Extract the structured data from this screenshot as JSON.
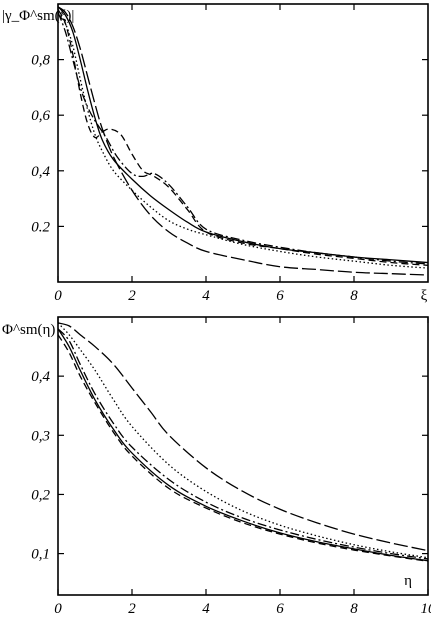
{
  "chart_data": [
    {
      "type": "line",
      "ylabel": "|γ_Φ^sm(ξ)|",
      "xlabel": "ξ",
      "xlim": [
        0,
        10
      ],
      "ylim": [
        0,
        1.0
      ],
      "x_ticks": [
        0,
        2,
        4,
        6,
        8
      ],
      "x_tick_labels": [
        "0",
        "2",
        "4",
        "6",
        "8"
      ],
      "x_axis_label_tick": "ξ",
      "y_ticks": [
        0.2,
        0.4,
        0.6,
        0.8
      ],
      "y_tick_labels": [
        "0.2",
        "0,4",
        "0,6",
        "0,8"
      ],
      "grid": false,
      "series": [
        {
          "style": "solid",
          "x": [
            0,
            0.2,
            0.4,
            0.6,
            0.8,
            1.0,
            1.2,
            1.5,
            2.0,
            2.5,
            3.0,
            3.5,
            4.0,
            5.0,
            6.0,
            7.0,
            8.0,
            9.0,
            10.0
          ],
          "y": [
            0.99,
            0.96,
            0.9,
            0.8,
            0.69,
            0.59,
            0.51,
            0.44,
            0.37,
            0.31,
            0.26,
            0.215,
            0.18,
            0.145,
            0.12,
            0.105,
            0.09,
            0.08,
            0.07
          ]
        },
        {
          "style": "dotted",
          "x": [
            0,
            0.2,
            0.4,
            0.6,
            0.8,
            1.0,
            1.2,
            1.5,
            2.0,
            2.5,
            3.0,
            3.5,
            4.0,
            5.0,
            6.0,
            7.0,
            8.0,
            9.0,
            10.0
          ],
          "y": [
            0.97,
            0.93,
            0.85,
            0.73,
            0.62,
            0.53,
            0.47,
            0.4,
            0.33,
            0.27,
            0.22,
            0.19,
            0.17,
            0.135,
            0.11,
            0.09,
            0.075,
            0.06,
            0.05
          ]
        },
        {
          "style": "dashed",
          "x": [
            0,
            0.2,
            0.4,
            0.6,
            0.8,
            1.0,
            1.2,
            1.4,
            1.7,
            2.0,
            2.3,
            2.6,
            3.0,
            3.5,
            4.0,
            5.0,
            6.0,
            7.0,
            8.0,
            9.0,
            10.0
          ],
          "y": [
            0.98,
            0.93,
            0.82,
            0.68,
            0.57,
            0.52,
            0.54,
            0.55,
            0.53,
            0.46,
            0.4,
            0.38,
            0.34,
            0.26,
            0.18,
            0.14,
            0.12,
            0.1,
            0.085,
            0.07,
            0.06
          ]
        },
        {
          "style": "dash-dot",
          "x": [
            0,
            0.2,
            0.4,
            0.6,
            0.8,
            1.0,
            1.3,
            1.6,
            2.0,
            2.3,
            2.6,
            3.0,
            3.5,
            4.0,
            5.0,
            6.0,
            7.0,
            8.0,
            9.0,
            10.0
          ],
          "y": [
            0.97,
            0.9,
            0.8,
            0.7,
            0.63,
            0.58,
            0.52,
            0.45,
            0.39,
            0.38,
            0.39,
            0.35,
            0.27,
            0.19,
            0.15,
            0.125,
            0.105,
            0.09,
            0.075,
            0.065
          ]
        },
        {
          "style": "long-dash",
          "x": [
            0,
            0.2,
            0.4,
            0.6,
            0.8,
            1.0,
            1.2,
            1.5,
            2.0,
            2.5,
            3.0,
            3.5,
            4.0,
            5.0,
            6.0,
            7.0,
            8.0,
            9.0,
            10.0
          ],
          "y": [
            0.99,
            0.97,
            0.92,
            0.84,
            0.74,
            0.64,
            0.55,
            0.45,
            0.33,
            0.24,
            0.18,
            0.14,
            0.11,
            0.08,
            0.055,
            0.045,
            0.035,
            0.03,
            0.025
          ]
        }
      ]
    },
    {
      "type": "line",
      "ylabel": "Φ^sm(η)",
      "xlabel": "η",
      "xlim": [
        0,
        10
      ],
      "ylim": [
        0.03,
        0.5
      ],
      "x_ticks": [
        0,
        2,
        4,
        6,
        8,
        10
      ],
      "x_tick_labels": [
        "0",
        "2",
        "4",
        "6",
        "8",
        "10"
      ],
      "x_axis_label_tick": "η",
      "y_ticks": [
        0.1,
        0.2,
        0.3,
        0.4
      ],
      "y_tick_labels": [
        "0,1",
        "0,2",
        "0,3",
        "0,4"
      ],
      "grid": false,
      "series": [
        {
          "style": "solid",
          "x": [
            0,
            0.3,
            0.6,
            1.0,
            1.5,
            2.0,
            3.0,
            4.0,
            5.0,
            6.0,
            7.0,
            8.0,
            9.0,
            10.0
          ],
          "y": [
            0.48,
            0.45,
            0.41,
            0.36,
            0.31,
            0.27,
            0.215,
            0.18,
            0.155,
            0.135,
            0.12,
            0.108,
            0.097,
            0.088
          ]
        },
        {
          "style": "dashed",
          "x": [
            0,
            0.3,
            0.6,
            1.0,
            1.5,
            2.0,
            3.0,
            4.0,
            5.0,
            6.0,
            7.0,
            8.0,
            9.0,
            10.0
          ],
          "y": [
            0.47,
            0.44,
            0.4,
            0.355,
            0.305,
            0.265,
            0.21,
            0.177,
            0.152,
            0.133,
            0.118,
            0.106,
            0.096,
            0.087
          ]
        },
        {
          "style": "dash-dot",
          "x": [
            0,
            0.3,
            0.6,
            1.0,
            1.5,
            2.0,
            3.0,
            4.0,
            5.0,
            6.0,
            7.0,
            8.0,
            9.0,
            10.0
          ],
          "y": [
            0.48,
            0.46,
            0.42,
            0.37,
            0.32,
            0.28,
            0.225,
            0.187,
            0.16,
            0.14,
            0.124,
            0.111,
            0.1,
            0.091
          ]
        },
        {
          "style": "dotted",
          "x": [
            0,
            0.3,
            0.6,
            1.0,
            1.5,
            2.0,
            3.0,
            4.0,
            5.0,
            6.0,
            7.0,
            8.0,
            9.0,
            10.0
          ],
          "y": [
            0.49,
            0.47,
            0.445,
            0.41,
            0.36,
            0.315,
            0.25,
            0.205,
            0.172,
            0.148,
            0.13,
            0.115,
            0.103,
            0.093
          ]
        },
        {
          "style": "long-dash",
          "x": [
            0,
            0.3,
            0.6,
            1.0,
            1.5,
            2.0,
            2.5,
            3.0,
            4.0,
            5.0,
            6.0,
            7.0,
            8.0,
            9.0,
            10.0
          ],
          "y": [
            0.49,
            0.485,
            0.47,
            0.45,
            0.42,
            0.38,
            0.34,
            0.3,
            0.245,
            0.205,
            0.175,
            0.152,
            0.133,
            0.118,
            0.105
          ]
        }
      ]
    }
  ]
}
